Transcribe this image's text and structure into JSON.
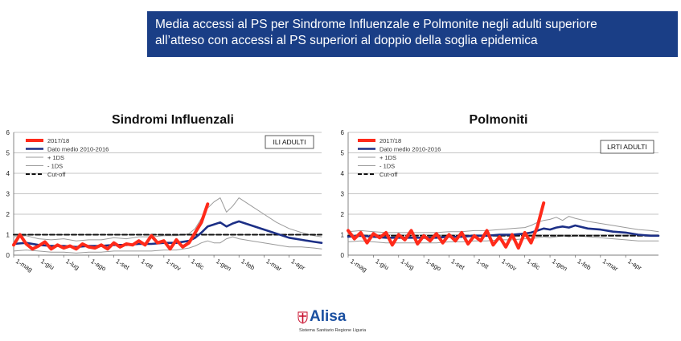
{
  "banner": {
    "line1": "Media accessi al PS per Sindrome Influenzale e Polmonite negli adulti superiore",
    "line2": "all’atteso con accessi al PS superiori al doppio della soglia epidemica"
  },
  "logo": {
    "name": "Alisa",
    "subtitle": "Sistema Sanitario Regione Liguria",
    "icon": "liguria-shield-icon"
  },
  "colors": {
    "series_2017": "#ff2a1a",
    "series_mean": "#1c2f86",
    "series_sd": "#9a9a9a",
    "cutoff": "#111111",
    "banner_bg": "#1a3e86"
  },
  "chart_data": [
    {
      "type": "line",
      "title": "Sindromi Influenzali",
      "box_label": "ILI ADULTI",
      "ylim": [
        0,
        6
      ],
      "yticks": [
        0,
        1,
        2,
        3,
        4,
        5,
        6
      ],
      "xticks": [
        "1-mag",
        "1-giu",
        "1-lug",
        "1-ago",
        "1-set",
        "1-ott",
        "1-nov",
        "1-dic",
        "1-gen",
        "1-feb",
        "1-mar",
        "1-apr"
      ],
      "xlim": [
        0,
        12.3
      ],
      "grid": true,
      "legend_position": "top-left",
      "series": [
        {
          "name": "2017/18",
          "x": [
            0,
            0.25,
            0.5,
            0.75,
            1,
            1.25,
            1.5,
            1.75,
            2,
            2.25,
            2.5,
            2.75,
            3,
            3.25,
            3.5,
            3.75,
            4,
            4.25,
            4.5,
            4.75,
            5,
            5.25,
            5.5,
            5.75,
            6,
            6.25,
            6.5,
            6.75,
            7,
            7.25,
            7.5,
            7.75
          ],
          "values": [
            0.5,
            1.0,
            0.55,
            0.3,
            0.45,
            0.65,
            0.3,
            0.5,
            0.35,
            0.45,
            0.3,
            0.55,
            0.4,
            0.35,
            0.5,
            0.3,
            0.6,
            0.4,
            0.55,
            0.5,
            0.7,
            0.5,
            0.95,
            0.6,
            0.7,
            0.3,
            0.75,
            0.4,
            0.6,
            1.1,
            1.6,
            2.5
          ]
        },
        {
          "name": "Dato medio 2010-2016",
          "x": [
            0,
            0.5,
            1,
            1.5,
            2,
            2.5,
            3,
            3.5,
            4,
            4.5,
            5,
            5.5,
            6,
            6.5,
            7,
            7.25,
            7.5,
            7.75,
            8,
            8.25,
            8.5,
            8.75,
            9,
            9.5,
            10,
            10.5,
            11,
            11.5,
            12,
            12.3
          ],
          "values": [
            0.55,
            0.6,
            0.5,
            0.45,
            0.45,
            0.4,
            0.45,
            0.45,
            0.5,
            0.5,
            0.55,
            0.55,
            0.6,
            0.6,
            0.7,
            0.85,
            1.1,
            1.4,
            1.5,
            1.6,
            1.4,
            1.55,
            1.65,
            1.45,
            1.25,
            1.05,
            0.85,
            0.75,
            0.65,
            0.6
          ]
        },
        {
          "name": "+ 1DS",
          "x": [
            0,
            0.5,
            1,
            1.5,
            2,
            2.5,
            3,
            3.5,
            4,
            4.5,
            5,
            5.5,
            6,
            6.5,
            7,
            7.25,
            7.5,
            7.75,
            8,
            8.25,
            8.5,
            8.75,
            9,
            9.5,
            10,
            10.5,
            11,
            11.5,
            12,
            12.3
          ],
          "values": [
            0.9,
            0.95,
            0.8,
            0.75,
            0.8,
            0.7,
            0.75,
            0.75,
            0.85,
            0.8,
            0.9,
            0.9,
            0.95,
            0.95,
            1.05,
            1.3,
            1.8,
            2.3,
            2.6,
            2.8,
            2.1,
            2.4,
            2.8,
            2.4,
            2.0,
            1.6,
            1.3,
            1.1,
            0.95,
            0.9
          ]
        },
        {
          "name": "- 1DS",
          "x": [
            0,
            0.5,
            1,
            1.5,
            2,
            2.5,
            3,
            3.5,
            4,
            4.5,
            5,
            5.5,
            6,
            6.5,
            7,
            7.25,
            7.5,
            7.75,
            8,
            8.25,
            8.5,
            8.75,
            9,
            9.5,
            10,
            10.5,
            11,
            11.5,
            12,
            12.3
          ],
          "values": [
            0.2,
            0.25,
            0.2,
            0.15,
            0.15,
            0.1,
            0.15,
            0.15,
            0.2,
            0.2,
            0.2,
            0.2,
            0.25,
            0.25,
            0.35,
            0.45,
            0.6,
            0.7,
            0.6,
            0.6,
            0.8,
            0.9,
            0.8,
            0.7,
            0.6,
            0.5,
            0.4,
            0.4,
            0.35,
            0.3
          ]
        },
        {
          "name": "Cut-off",
          "x": [
            0,
            12.3
          ],
          "values": [
            1.0,
            1.0
          ]
        }
      ]
    },
    {
      "type": "line",
      "title": "Polmoniti",
      "box_label": "LRTI ADULTI",
      "ylim": [
        0,
        6
      ],
      "yticks": [
        0,
        1,
        2,
        3,
        4,
        5,
        6
      ],
      "xticks": [
        "1-mag",
        "1-giu",
        "1-lug",
        "1-ago",
        "1-set",
        "1-ott",
        "1-nov",
        "1-dic",
        "1-gen",
        "1-feb",
        "1-mar",
        "1-apr"
      ],
      "xlim": [
        0,
        12.3
      ],
      "grid": true,
      "legend_position": "top-left",
      "series": [
        {
          "name": "2017/18",
          "x": [
            0,
            0.25,
            0.5,
            0.75,
            1,
            1.25,
            1.5,
            1.75,
            2,
            2.25,
            2.5,
            2.75,
            3,
            3.25,
            3.5,
            3.75,
            4,
            4.25,
            4.5,
            4.75,
            5,
            5.25,
            5.5,
            5.75,
            6,
            6.25,
            6.5,
            6.75,
            7,
            7.25,
            7.5,
            7.75
          ],
          "values": [
            1.2,
            0.8,
            1.1,
            0.6,
            1.05,
            0.85,
            1.1,
            0.5,
            1.0,
            0.75,
            1.2,
            0.55,
            0.95,
            0.7,
            1.05,
            0.6,
            1.0,
            0.7,
            1.1,
            0.55,
            0.95,
            0.7,
            1.2,
            0.5,
            0.9,
            0.4,
            1.0,
            0.35,
            1.1,
            0.6,
            1.4,
            2.55
          ]
        },
        {
          "name": "Dato medio 2010-2016",
          "x": [
            0,
            0.5,
            1,
            1.5,
            2,
            2.5,
            3,
            3.5,
            4,
            4.5,
            5,
            5.5,
            6,
            6.5,
            7,
            7.25,
            7.5,
            7.75,
            8,
            8.25,
            8.5,
            8.75,
            9,
            9.5,
            10,
            10.5,
            11,
            11.5,
            12,
            12.3
          ],
          "values": [
            0.9,
            0.95,
            0.9,
            0.85,
            0.85,
            0.85,
            0.85,
            0.85,
            0.9,
            0.9,
            0.95,
            0.95,
            1.0,
            1.0,
            1.05,
            1.1,
            1.2,
            1.3,
            1.25,
            1.35,
            1.4,
            1.35,
            1.45,
            1.3,
            1.25,
            1.15,
            1.1,
            1.0,
            0.95,
            0.95
          ]
        },
        {
          "name": "+ 1DS",
          "x": [
            0,
            0.5,
            1,
            1.5,
            2,
            2.5,
            3,
            3.5,
            4,
            4.5,
            5,
            5.5,
            6,
            6.5,
            7,
            7.25,
            7.5,
            7.75,
            8,
            8.25,
            8.5,
            8.75,
            9,
            9.5,
            10,
            10.5,
            11,
            11.5,
            12,
            12.3
          ],
          "values": [
            1.15,
            1.2,
            1.15,
            1.1,
            1.1,
            1.1,
            1.1,
            1.1,
            1.15,
            1.15,
            1.2,
            1.2,
            1.25,
            1.3,
            1.35,
            1.45,
            1.6,
            1.7,
            1.75,
            1.85,
            1.7,
            1.9,
            1.8,
            1.65,
            1.55,
            1.45,
            1.35,
            1.25,
            1.2,
            1.15
          ]
        },
        {
          "name": "- 1DS",
          "x": [
            0,
            0.5,
            1,
            1.5,
            2,
            2.5,
            3,
            3.5,
            4,
            4.5,
            5,
            5.5,
            6,
            6.5,
            7,
            7.25,
            7.5,
            7.75,
            8,
            8.25,
            8.5,
            8.75,
            9,
            9.5,
            10,
            10.5,
            11,
            11.5,
            12,
            12.3
          ],
          "values": [
            0.65,
            0.7,
            0.65,
            0.6,
            0.6,
            0.6,
            0.6,
            0.6,
            0.65,
            0.65,
            0.7,
            0.7,
            0.75,
            0.75,
            0.8,
            0.8,
            0.85,
            0.9,
            0.85,
            0.9,
            0.95,
            0.9,
            0.95,
            0.9,
            0.85,
            0.8,
            0.75,
            0.7,
            0.7,
            0.7
          ]
        },
        {
          "name": "Cut-off",
          "x": [
            0,
            12.3
          ],
          "values": [
            0.95,
            0.95
          ]
        }
      ]
    }
  ]
}
